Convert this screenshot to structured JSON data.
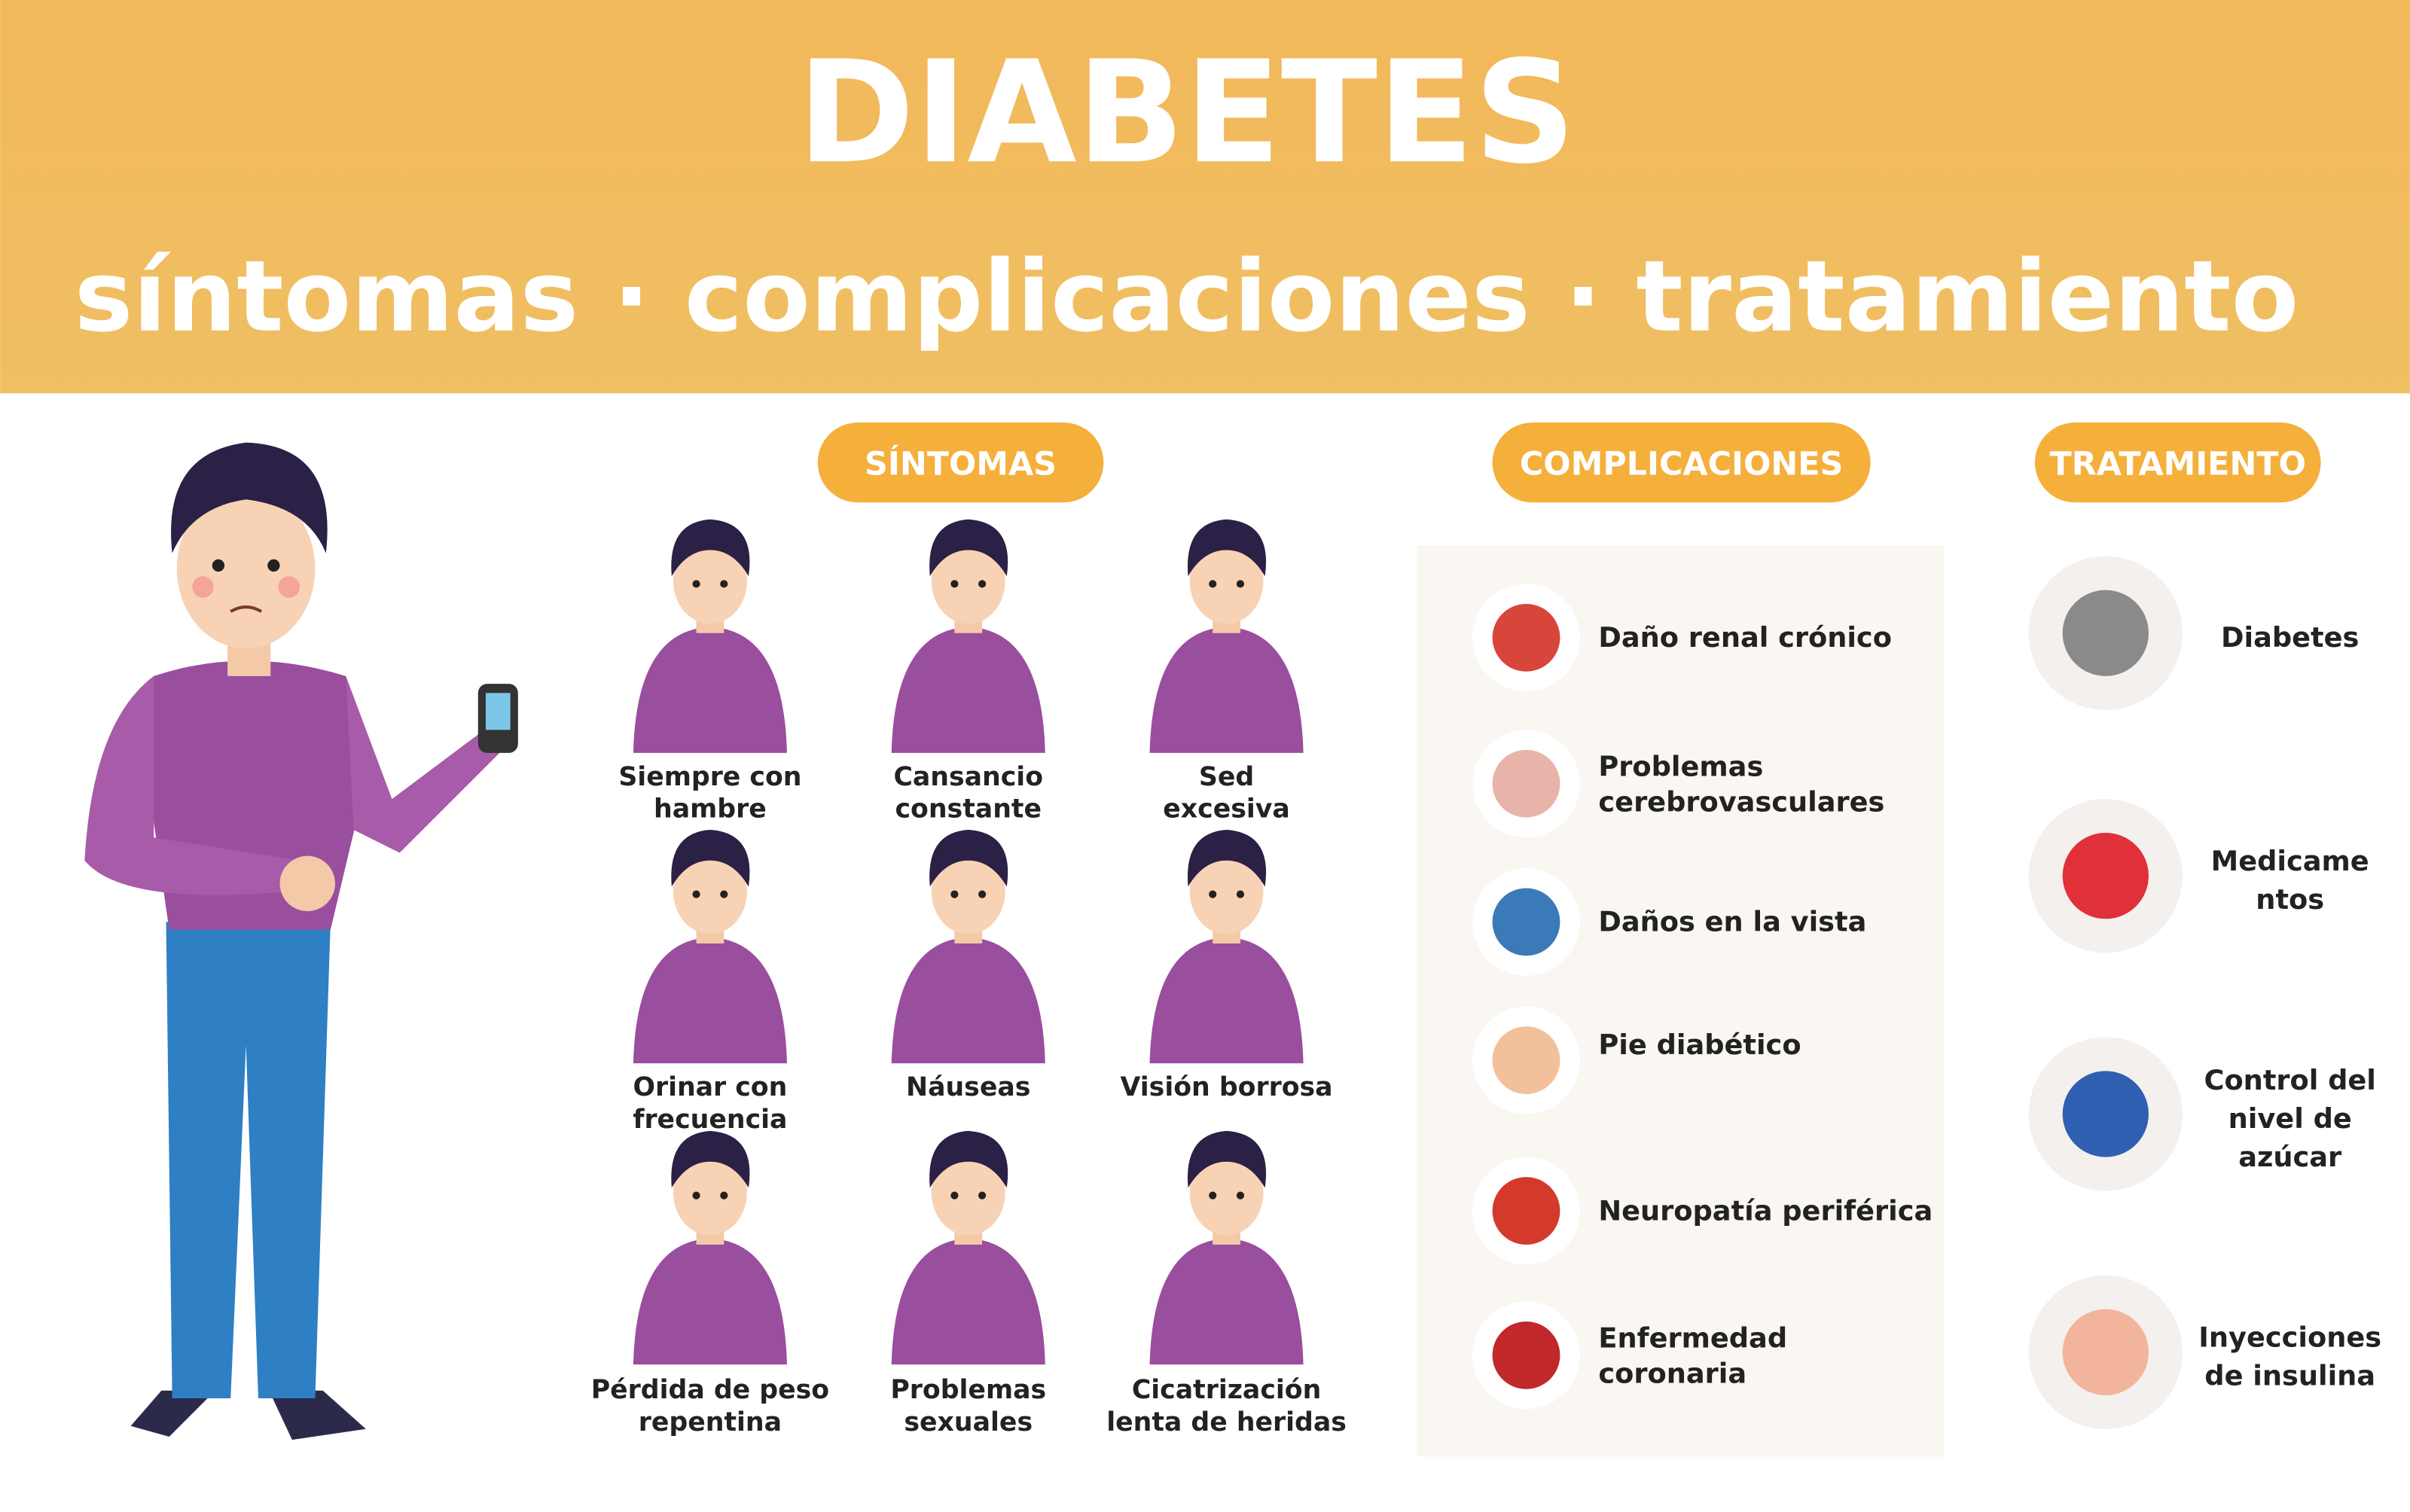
{
  "header": {
    "title": "DIABETES",
    "subtitle": "síntomas · complicaciones · tratamiento"
  },
  "symptoms": {
    "label": "SÍNTOMAS",
    "items": [
      {
        "lines": [
          "Siempre con",
          "hambre"
        ]
      },
      {
        "lines": [
          "Cansancio",
          "constante"
        ]
      },
      {
        "lines": [
          "Sed",
          "excesiva"
        ]
      },
      {
        "lines": [
          "Orinar con",
          "frecuencia"
        ]
      },
      {
        "lines": [
          "Náuseas"
        ]
      },
      {
        "lines": [
          "Visión borrosa"
        ]
      },
      {
        "lines": [
          "Pérdida de peso",
          "repentina"
        ]
      },
      {
        "lines": [
          "Problemas",
          "sexuales"
        ]
      },
      {
        "lines": [
          "Cicatrización",
          "lenta de heridas"
        ]
      }
    ]
  },
  "complications": {
    "label": "COMPLICACIONES",
    "items": [
      {
        "lines": [
          "Daño renal crónico"
        ]
      },
      {
        "lines": [
          "Problemas",
          "cerebrovasculares"
        ]
      },
      {
        "lines": [
          "Daños en la vista"
        ]
      },
      {
        "lines": [
          "Pie diabético"
        ]
      },
      {
        "lines": [
          "Neuropatía periférica"
        ]
      },
      {
        "lines": [
          "Enfermedad",
          "coronaria"
        ]
      }
    ]
  },
  "treatment": {
    "label": "TRATAMIENTO",
    "items": [
      {
        "lines": [
          "Diabetes"
        ]
      },
      {
        "lines": [
          "Medicame",
          "ntos"
        ]
      },
      {
        "lines": [
          "Control del",
          "nivel de",
          "azúcar"
        ]
      },
      {
        "lines": [
          "Inyecciones",
          "de insulina"
        ]
      }
    ]
  }
}
